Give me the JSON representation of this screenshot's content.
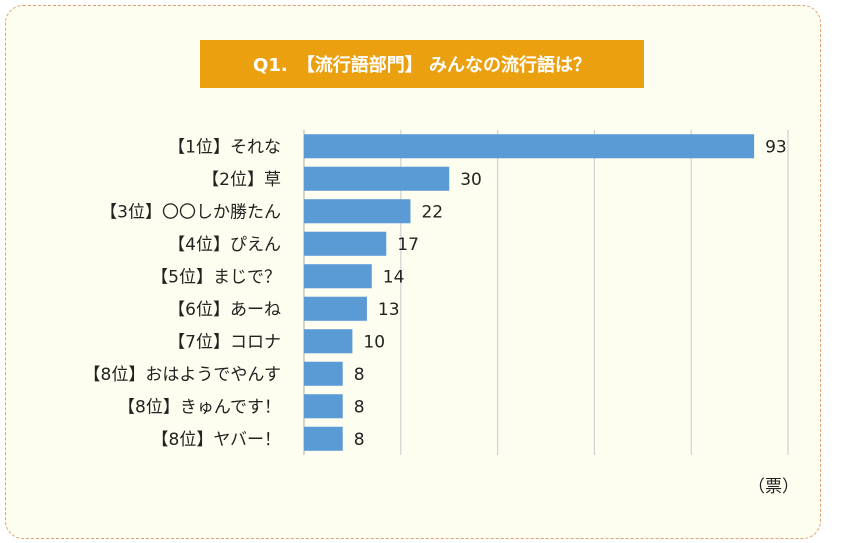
{
  "chart_data": {
    "type": "bar",
    "orientation": "horizontal",
    "title": "Q1.　【流行語部門】 みんなの流行語は？",
    "unit_label": "（票）",
    "categories": [
      "【1位】それな",
      "【2位】草",
      "【3位】〇〇しか勝たん",
      "【4位】ぴえん",
      "【5位】まじで？",
      "【6位】あーね",
      "【7位】コロナ",
      "【8位】おはようでやんす",
      "【8位】きゅんです！",
      "【8位】ヤバー！"
    ],
    "values": [
      93,
      30,
      22,
      17,
      14,
      13,
      10,
      8,
      8,
      8
    ],
    "xlim": [
      0,
      100
    ],
    "grid": true,
    "data_labels": true,
    "legend": "none",
    "colors": {
      "bar": "#5b9bd5",
      "title_bg": "#eba10f",
      "title_text": "#ffffff",
      "frame_border": "#e0a070",
      "frame_bg": "#fefef0",
      "grid": "#d0d0d0"
    }
  }
}
